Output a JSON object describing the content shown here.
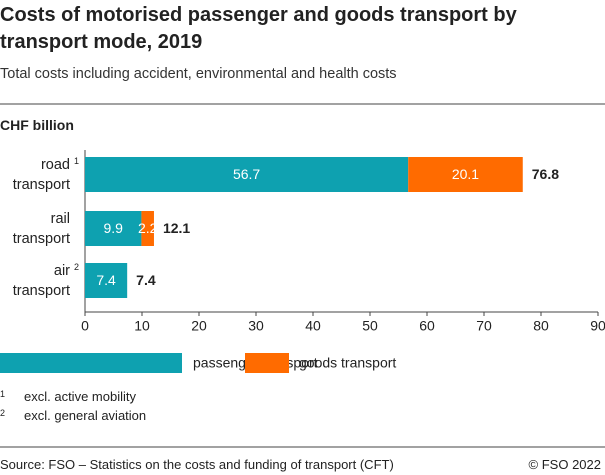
{
  "chart_data": {
    "type": "stacked-barh",
    "title": "Costs of motorised passenger and goods transport by transport mode, 2019",
    "subtitle": "Total costs including accident, environmental and health costs",
    "unit_label": "CHF billion",
    "categories": [
      "road transport",
      "rail transport",
      "air transport"
    ],
    "category_notes": [
      "1",
      null,
      "2"
    ],
    "series": [
      {
        "name": "passenger transport",
        "color": "#0ea1b0",
        "values": [
          56.7,
          9.9,
          7.4
        ]
      },
      {
        "name": "goods transport",
        "color": "#ff6b00",
        "values": [
          20.1,
          2.2,
          null
        ]
      }
    ],
    "totals": [
      76.8,
      12.1,
      7.4
    ],
    "xlim": [
      0,
      90
    ],
    "xticks": [
      0,
      10,
      20,
      30,
      40,
      50,
      60,
      70,
      80,
      90
    ],
    "footnotes": [
      {
        "mark": "1",
        "text": "excl. active mobility"
      },
      {
        "mark": "2",
        "text": "excl. general aviation"
      }
    ],
    "source": "Source: FSO – Statistics on the costs and funding of transport (CFT)",
    "copyright": "© FSO 2022"
  }
}
